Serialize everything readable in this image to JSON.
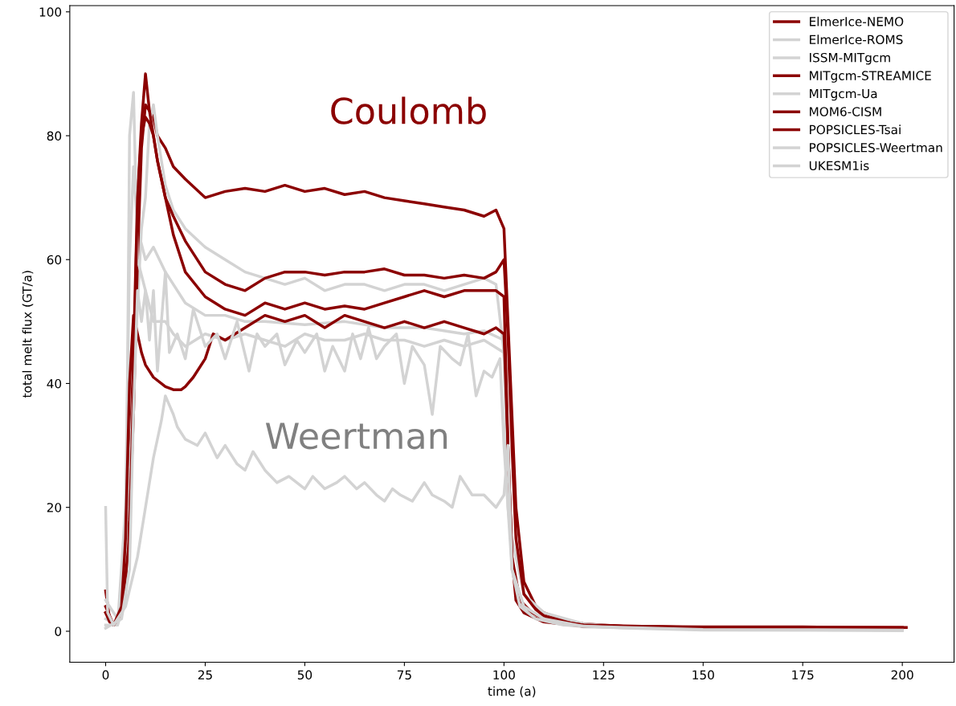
{
  "chart_data": {
    "type": "line",
    "xlabel": "time (a)",
    "ylabel": "total melt flux (GT/a)",
    "xlim": [
      -9,
      213
    ],
    "ylim": [
      -5,
      101
    ],
    "xticks": [
      0,
      25,
      50,
      75,
      100,
      125,
      150,
      175,
      200
    ],
    "yticks": [
      0,
      20,
      40,
      60,
      80,
      100
    ],
    "grid": false,
    "legend": "top right",
    "marker": "none",
    "line_style": "solid",
    "annotations": [
      "Coulomb",
      "Weertman"
    ],
    "series": [
      {
        "name": "ElmerIce-NEMO",
        "color": "#8b0000",
        "x": [
          0,
          1,
          2,
          3,
          4,
          5,
          6,
          7,
          8,
          9,
          10,
          11,
          12,
          13,
          15,
          17,
          20,
          25,
          30,
          35,
          40,
          45,
          50,
          55,
          60,
          65,
          70,
          75,
          80,
          85,
          90,
          95,
          98,
          100,
          101,
          102,
          103,
          105,
          108,
          110,
          115,
          120,
          130,
          150,
          175,
          201
        ],
        "values": [
          6.5,
          2,
          1,
          2,
          5,
          12,
          25,
          45,
          70,
          82,
          90,
          84,
          83,
          80,
          78,
          75,
          73,
          70,
          71,
          71.5,
          71,
          72,
          71,
          71.5,
          70.5,
          71,
          70,
          69.5,
          69,
          68.5,
          68,
          67,
          68,
          65,
          50,
          35,
          20,
          8,
          4,
          3,
          1.8,
          1.2,
          0.8,
          0.7,
          0.7,
          0.6
        ]
      },
      {
        "name": "ElmerIce-ROMS",
        "color": "#d3d3d3",
        "x": [
          0,
          3,
          5,
          7,
          9,
          10,
          11,
          12,
          13,
          15,
          17,
          20,
          25,
          30,
          35,
          40,
          45,
          50,
          55,
          60,
          65,
          70,
          75,
          80,
          85,
          90,
          95,
          98,
          100,
          102,
          105,
          110,
          120,
          130,
          150,
          175,
          200
        ],
        "values": [
          5,
          2,
          10,
          40,
          65,
          70,
          82,
          85,
          80,
          72,
          68,
          65,
          62,
          60,
          58,
          57,
          56,
          57,
          55,
          56,
          56,
          55,
          56,
          56,
          55,
          56,
          57,
          56,
          45,
          15,
          6,
          3,
          1.2,
          0.7,
          0.4,
          0.3,
          0.3
        ]
      },
      {
        "name": "ISSM-MITgcm",
        "color": "#d3d3d3",
        "x": [
          0,
          3,
          5,
          6,
          7,
          8,
          10,
          12,
          15,
          20,
          25,
          30,
          35,
          40,
          50,
          60,
          70,
          80,
          90,
          95,
          100,
          102,
          105,
          110,
          120,
          150,
          200
        ],
        "values": [
          2,
          1,
          20,
          60,
          75,
          65,
          60,
          62,
          58,
          53,
          51,
          51,
          50,
          50,
          49.5,
          50,
          49,
          49,
          48,
          48.5,
          47,
          10,
          4,
          2,
          0.8,
          0.3,
          0.2
        ]
      },
      {
        "name": "MITgcm-STREAMICE",
        "color": "#8b0000",
        "x": [
          0,
          1,
          2,
          3,
          4,
          5,
          6,
          7,
          8,
          9,
          10,
          11,
          12,
          13,
          15,
          17,
          20,
          25,
          30,
          35,
          40,
          45,
          50,
          55,
          60,
          65,
          70,
          75,
          80,
          85,
          90,
          95,
          98,
          100,
          101,
          102,
          103,
          105,
          108,
          110,
          115,
          120,
          130,
          150,
          175,
          200
        ],
        "values": [
          3,
          1.5,
          1,
          1.5,
          3,
          8,
          18,
          35,
          60,
          78,
          85,
          84,
          80,
          76,
          70,
          67,
          63,
          58,
          56,
          55,
          57,
          58,
          58,
          57.5,
          58,
          58,
          58.5,
          57.5,
          57.5,
          57,
          57.5,
          57,
          58,
          60,
          48,
          30,
          15,
          6,
          3.5,
          2.5,
          1.5,
          1,
          0.8,
          0.6,
          0.6,
          0.6
        ]
      },
      {
        "name": "MITgcm-Ua",
        "color": "#d3d3d3",
        "x": [
          0,
          3,
          5,
          6,
          7,
          8,
          10,
          12,
          15,
          17,
          20,
          25,
          30,
          35,
          40,
          45,
          50,
          55,
          60,
          65,
          70,
          75,
          80,
          85,
          90,
          95,
          100,
          101,
          103,
          105,
          110,
          120,
          150,
          200
        ],
        "values": [
          1,
          1,
          5,
          80,
          87,
          60,
          55,
          50,
          50,
          48,
          46,
          48,
          47,
          48,
          47,
          46,
          48,
          47,
          47,
          48,
          47,
          47,
          46,
          47,
          46,
          47,
          45,
          20,
          6,
          3,
          1.5,
          0.7,
          0.3,
          0.2
        ]
      },
      {
        "name": "MOM6-CISM",
        "color": "#8b0000",
        "x": [
          0,
          2,
          4,
          6,
          7,
          8,
          9,
          10,
          11,
          12,
          13,
          15,
          17,
          20,
          25,
          30,
          35,
          40,
          45,
          50,
          55,
          60,
          65,
          70,
          75,
          80,
          85,
          90,
          95,
          98,
          100,
          101,
          102,
          103,
          105,
          110,
          120,
          150,
          200
        ],
        "values": [
          4,
          1,
          3,
          15,
          40,
          70,
          80,
          83,
          82,
          80,
          76,
          70,
          64,
          58,
          54,
          52,
          51,
          53,
          52,
          53,
          52,
          52.5,
          52,
          53,
          54,
          55,
          54,
          55,
          55,
          55,
          54,
          30,
          12,
          5,
          3,
          1.5,
          0.8,
          0.5,
          0.5
        ]
      },
      {
        "name": "POPSICLES-Tsai",
        "color": "#8b0000",
        "x": [
          0,
          2,
          4,
          5,
          6,
          7,
          8,
          9,
          10,
          12,
          15,
          17,
          19,
          20,
          22,
          25,
          27,
          30,
          35,
          40,
          45,
          50,
          55,
          60,
          65,
          70,
          75,
          80,
          85,
          90,
          95,
          98,
          100,
          101,
          102,
          104,
          107,
          110,
          120,
          150,
          200
        ],
        "values": [
          3,
          1,
          4,
          15,
          40,
          51,
          48,
          45,
          43,
          41,
          39.5,
          39,
          39,
          39.5,
          41,
          44,
          48,
          47,
          49,
          51,
          50,
          51,
          49,
          51,
          50,
          49,
          50,
          49,
          50,
          49,
          48,
          49,
          48,
          30,
          12,
          5,
          3,
          2,
          1,
          0.6,
          0.5
        ]
      },
      {
        "name": "POPSICLES-Weertman",
        "color": "#d3d3d3",
        "x": [
          0,
          4,
          6,
          7,
          8,
          9,
          10,
          11,
          12,
          13,
          15,
          16,
          18,
          20,
          22,
          25,
          28,
          30,
          33,
          36,
          38,
          40,
          43,
          45,
          48,
          50,
          53,
          55,
          57,
          60,
          62,
          64,
          66,
          68,
          70,
          73,
          75,
          77,
          80,
          82,
          84,
          87,
          89,
          91,
          93,
          95,
          97,
          99,
          100,
          102,
          105,
          110,
          120,
          150,
          200
        ],
        "values": [
          0.5,
          2,
          10,
          35,
          55,
          50,
          55,
          47,
          55,
          42,
          58,
          45,
          48,
          44,
          52,
          46,
          48,
          44,
          50,
          42,
          48,
          46,
          48,
          43,
          47,
          45,
          48,
          42,
          46,
          42,
          48,
          44,
          49,
          44,
          46,
          48,
          40,
          46,
          43,
          35,
          46,
          44,
          43,
          48,
          38,
          42,
          41,
          44,
          30,
          10,
          4,
          2,
          0.8,
          0.3,
          0.2
        ]
      },
      {
        "name": "UKESM1is",
        "color": "#d3d3d3",
        "x": [
          0,
          0.5,
          2,
          5,
          8,
          10,
          12,
          14,
          15,
          17,
          18,
          20,
          23,
          25,
          28,
          30,
          33,
          35,
          37,
          40,
          43,
          46,
          50,
          52,
          55,
          58,
          60,
          63,
          65,
          68,
          70,
          72,
          74,
          77,
          80,
          82,
          85,
          87,
          89,
          92,
          95,
          98,
          100,
          101,
          102,
          104,
          108,
          115,
          130,
          150,
          200
        ],
        "values": [
          20,
          3,
          1,
          4,
          12,
          20,
          28,
          34,
          38,
          35,
          33,
          31,
          30,
          32,
          28,
          30,
          27,
          26,
          29,
          26,
          24,
          25,
          23,
          25,
          23,
          24,
          25,
          23,
          24,
          22,
          21,
          23,
          22,
          21,
          24,
          22,
          21,
          20,
          25,
          22,
          22,
          20,
          22,
          30,
          10,
          4,
          2,
          1,
          0.5,
          0.2,
          0.1
        ]
      }
    ]
  }
}
